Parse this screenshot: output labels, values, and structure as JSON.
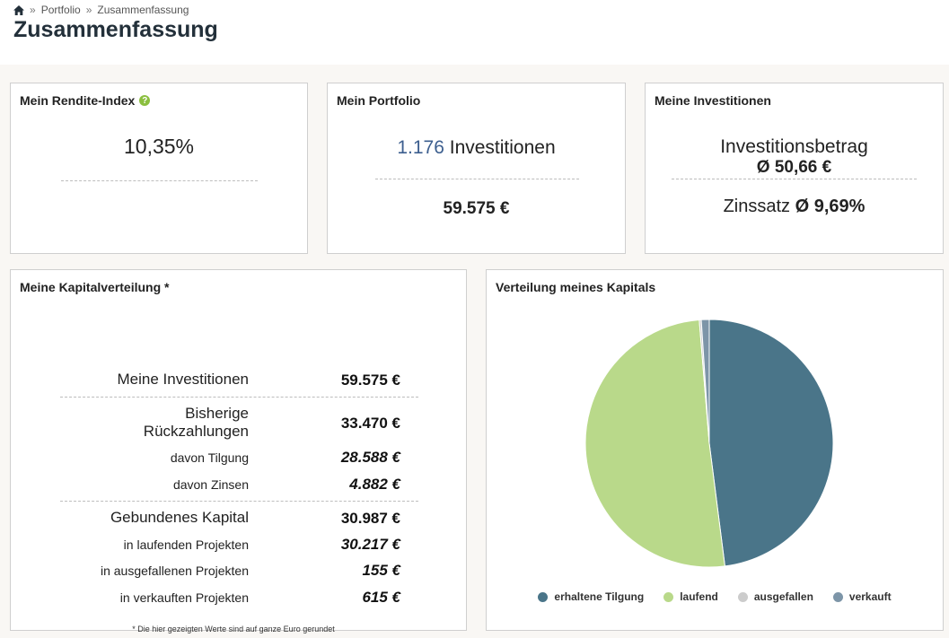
{
  "breadcrumb": {
    "items": [
      "Portfolio",
      "Zusammenfassung"
    ],
    "separator": "»"
  },
  "page_title": "Zusammenfassung",
  "rendite": {
    "title": "Mein Rendite-Index",
    "help": "?",
    "value": "10,35%"
  },
  "portfolio": {
    "title": "Mein Portfolio",
    "count": "1.176",
    "count_label": "Investitionen",
    "total": "59.575 €"
  },
  "investitionen": {
    "title": "Meine Investitionen",
    "betrag_label": "Investitionsbetrag",
    "betrag_value": "Ø 50,66 €",
    "zins_label": "Zinssatz",
    "zins_value": "Ø 9,69%"
  },
  "kapital": {
    "title": "Meine Kapitalverteilung *",
    "rows": [
      {
        "label": "Meine Investitionen",
        "value": "59.575 €"
      },
      {
        "label_line1": "Bisherige",
        "label_line2": "Rückzahlungen",
        "value": "33.470 €"
      },
      {
        "label": "davon Tilgung",
        "value": "28.588 €"
      },
      {
        "label": "davon Zinsen",
        "value": "4.882 €"
      },
      {
        "label": "Gebundenes Kapital",
        "value": "30.987 €"
      },
      {
        "label": "in laufenden Projekten",
        "value": "30.217 €"
      },
      {
        "label": "in ausgefallenen Projekten",
        "value": "155 €"
      },
      {
        "label": "in verkauften Projekten",
        "value": "615 €"
      }
    ],
    "footnote": "* Die hier gezeigten Werte sind auf ganze Euro gerundet"
  },
  "chart_data": {
    "type": "pie",
    "title": "Verteilung meines Kapitals",
    "legend_position": "bottom",
    "slices": [
      {
        "name": "erhaltene Tilgung",
        "value": 28588,
        "color": "#4a7589"
      },
      {
        "name": "laufend",
        "value": 30217,
        "color": "#b9d98a"
      },
      {
        "name": "ausgefallen",
        "value": 155,
        "color": "#cccccc"
      },
      {
        "name": "verkauft",
        "value": 615,
        "color": "#7d95a8"
      }
    ]
  }
}
